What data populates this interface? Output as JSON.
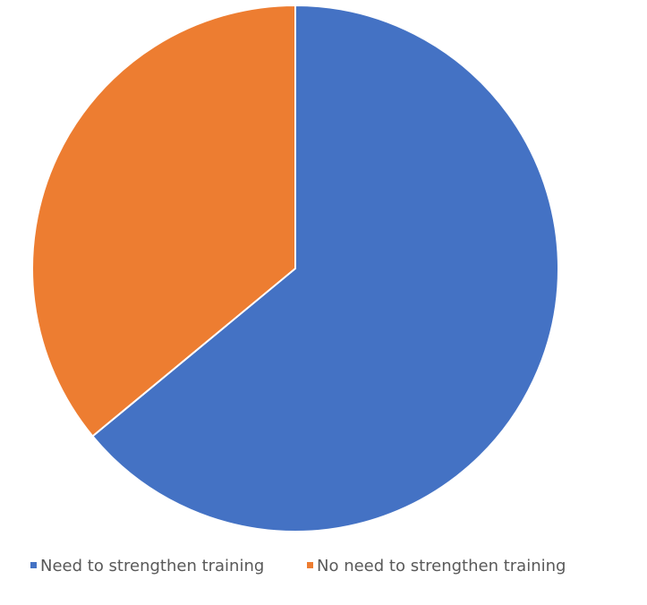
{
  "chart_data": {
    "type": "pie",
    "title": "",
    "categories": [
      "Need to strengthen training",
      "No need to strengthen training"
    ],
    "values": [
      64,
      36
    ],
    "colors": [
      "#4472C4",
      "#ED7D31"
    ],
    "start_angle": "12 o'clock, clockwise",
    "legend": {
      "placement": "bottom",
      "entries": [
        "Need to strengthen training",
        "No need to strengthen training"
      ]
    },
    "data_labels": false
  }
}
